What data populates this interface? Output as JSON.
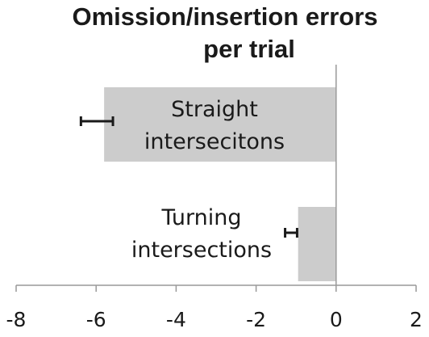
{
  "chart_data": {
    "type": "bar",
    "orientation": "horizontal",
    "title": [
      "Omission/insertion errors",
      "per trial"
    ],
    "categories": [
      [
        "Straight",
        "intersecitons"
      ],
      [
        "Turning",
        "intersections"
      ]
    ],
    "values": [
      -5.8,
      -0.95
    ],
    "error": [
      0.4,
      0.15
    ],
    "xlim": [
      -8,
      2
    ],
    "xticks": [
      -8,
      -6,
      -4,
      -2,
      0,
      2
    ],
    "xtick_labels": [
      "-8",
      "-6",
      "-4",
      "-2",
      "0",
      "2"
    ],
    "xlabel": "",
    "ylabel": "",
    "grid": false,
    "bar_color": "#cccccc",
    "error_color": "#1a1a1a",
    "axis_color": "#999999"
  }
}
